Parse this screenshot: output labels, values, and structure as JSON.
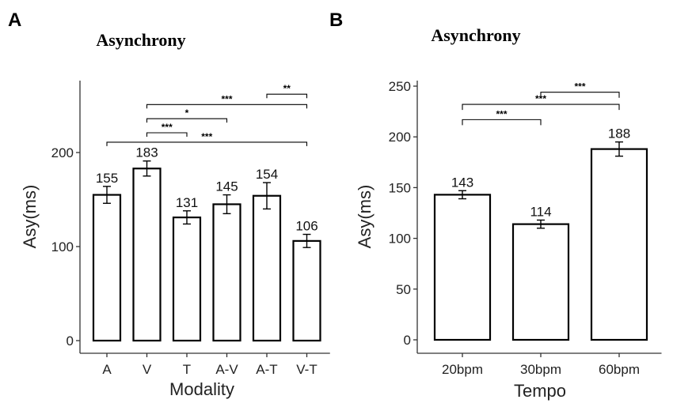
{
  "chart_data": [
    {
      "panel": "A",
      "type": "bar",
      "title": "Asynchrony",
      "xlabel": "Modality",
      "ylabel": "Asy(ms)",
      "ylim": [
        0,
        270
      ],
      "yticks": [
        0,
        100,
        200
      ],
      "categories": [
        "A",
        "V",
        "T",
        "A-V",
        "A-T",
        "V-T"
      ],
      "values": [
        155,
        183,
        131,
        145,
        154,
        106
      ],
      "labels": [
        "155",
        "183",
        "131",
        "145",
        "154",
        "106"
      ],
      "errors": [
        9,
        8,
        7,
        10,
        14,
        7
      ],
      "significance": [
        {
          "from": "A-T",
          "to": "V-T",
          "label": "**",
          "y": 262
        },
        {
          "from": "V",
          "to": "V-T",
          "label": "***",
          "y": 251
        },
        {
          "from": "V",
          "to": "A-V",
          "label": "*",
          "y": 236
        },
        {
          "from": "V",
          "to": "T",
          "label": "***",
          "y": 221
        },
        {
          "from": "A",
          "to": "V-T",
          "label": "***",
          "y": 211
        }
      ]
    },
    {
      "panel": "B",
      "type": "bar",
      "title": "Asynchrony",
      "xlabel": "Tempo",
      "ylabel": "Asy(ms)",
      "ylim": [
        0,
        255
      ],
      "yticks": [
        0,
        50,
        100,
        150,
        200,
        250
      ],
      "categories": [
        "20bpm",
        "30bpm",
        "60bpm"
      ],
      "values": [
        143,
        114,
        188
      ],
      "labels": [
        "143",
        "114",
        "188"
      ],
      "errors": [
        4,
        4,
        7
      ],
      "significance": [
        {
          "from": "30bpm",
          "to": "60bpm",
          "label": "***",
          "y": 244
        },
        {
          "from": "20bpm",
          "to": "60bpm",
          "label": "***",
          "y": 232
        },
        {
          "from": "20bpm",
          "to": "30bpm",
          "label": "***",
          "y": 217
        }
      ]
    }
  ]
}
